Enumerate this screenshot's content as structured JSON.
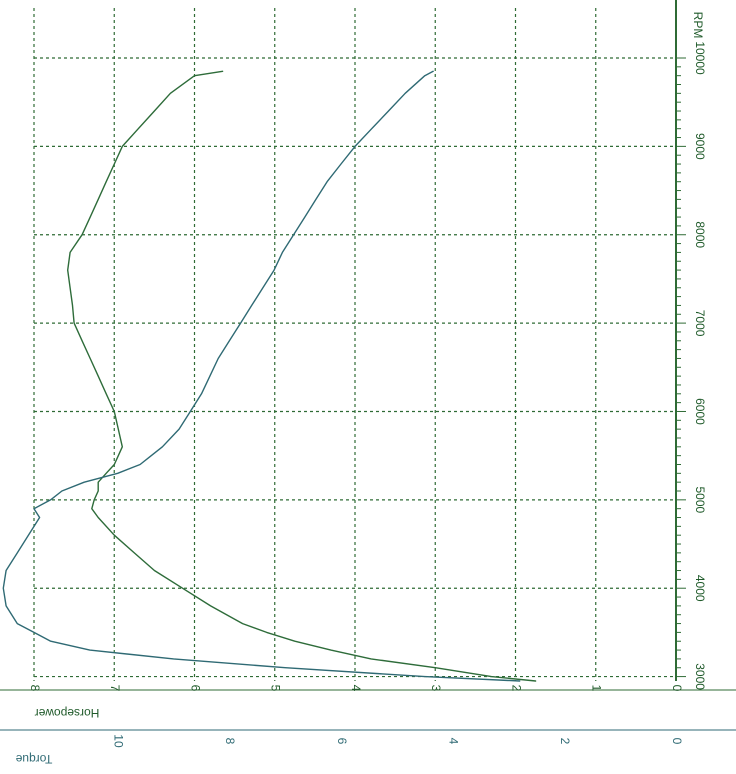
{
  "chart_data": {
    "type": "line",
    "orientation": "rotated-90-clockwise",
    "x_axis": {
      "label": "RPM",
      "ticks": [
        "3000",
        "4000",
        "5000",
        "6000",
        "7000",
        "8000",
        "9000",
        "10000"
      ],
      "range": [
        2950,
        10000
      ]
    },
    "horsepower_axis": {
      "label": "Horsepower",
      "ticks": [
        "0",
        "1",
        "2",
        "3",
        "4",
        "5",
        "6",
        "7",
        "8"
      ],
      "range": [
        0,
        8
      ]
    },
    "torque_axis": {
      "label": "Torque",
      "ticks": [
        "0",
        "2",
        "4",
        "6",
        "8",
        "10"
      ],
      "range": [
        0,
        11.5
      ]
    },
    "grid": true,
    "series": [
      {
        "color": "#2e6c3a",
        "axis": "horsepower",
        "points": [
          [
            2950,
            1.75
          ],
          [
            3000,
            2.3
          ],
          [
            3100,
            3.0
          ],
          [
            3200,
            3.8
          ],
          [
            3300,
            4.3
          ],
          [
            3400,
            4.75
          ],
          [
            3500,
            5.1
          ],
          [
            3600,
            5.4
          ],
          [
            3800,
            5.8
          ],
          [
            4000,
            6.15
          ],
          [
            4200,
            6.5
          ],
          [
            4400,
            6.75
          ],
          [
            4600,
            7.0
          ],
          [
            4800,
            7.2
          ],
          [
            4900,
            7.28
          ],
          [
            5000,
            7.25
          ],
          [
            5100,
            7.2
          ],
          [
            5200,
            7.2
          ],
          [
            5300,
            7.1
          ],
          [
            5400,
            7.0
          ],
          [
            5500,
            6.95
          ],
          [
            5600,
            6.9
          ],
          [
            5800,
            6.95
          ],
          [
            6000,
            7.0
          ],
          [
            6200,
            7.1
          ],
          [
            6400,
            7.2
          ],
          [
            6600,
            7.3
          ],
          [
            6800,
            7.4
          ],
          [
            7000,
            7.5
          ],
          [
            7200,
            7.52
          ],
          [
            7400,
            7.55
          ],
          [
            7600,
            7.58
          ],
          [
            7800,
            7.55
          ],
          [
            8000,
            7.4
          ],
          [
            8200,
            7.3
          ],
          [
            8400,
            7.2
          ],
          [
            8600,
            7.1
          ],
          [
            8800,
            7.0
          ],
          [
            9000,
            6.9
          ],
          [
            9200,
            6.7
          ],
          [
            9400,
            6.5
          ],
          [
            9600,
            6.3
          ],
          [
            9800,
            6.0
          ],
          [
            9850,
            5.65
          ]
        ]
      },
      {
        "color": "#2f6a74",
        "axis": "torque",
        "points": [
          [
            2950,
            2.8
          ],
          [
            3000,
            4.5
          ],
          [
            3100,
            7.0
          ],
          [
            3200,
            9.0
          ],
          [
            3300,
            10.5
          ],
          [
            3400,
            11.2
          ],
          [
            3500,
            11.5
          ],
          [
            3600,
            11.8
          ],
          [
            3800,
            12.0
          ],
          [
            4000,
            12.05
          ],
          [
            4200,
            12.0
          ],
          [
            4400,
            11.8
          ],
          [
            4600,
            11.6
          ],
          [
            4800,
            11.4
          ],
          [
            4900,
            11.5
          ],
          [
            5000,
            11.2
          ],
          [
            5100,
            11.0
          ],
          [
            5200,
            10.6
          ],
          [
            5300,
            10.0
          ],
          [
            5400,
            9.6
          ],
          [
            5500,
            9.4
          ],
          [
            5600,
            9.2
          ],
          [
            5800,
            8.9
          ],
          [
            6000,
            8.7
          ],
          [
            6200,
            8.5
          ],
          [
            6400,
            8.35
          ],
          [
            6600,
            8.2
          ],
          [
            6800,
            8.0
          ],
          [
            7000,
            7.8
          ],
          [
            7200,
            7.6
          ],
          [
            7400,
            7.4
          ],
          [
            7600,
            7.2
          ],
          [
            7800,
            7.05
          ],
          [
            8000,
            6.85
          ],
          [
            8200,
            6.65
          ],
          [
            8400,
            6.45
          ],
          [
            8600,
            6.25
          ],
          [
            8800,
            6.0
          ],
          [
            9000,
            5.75
          ],
          [
            9200,
            5.45
          ],
          [
            9400,
            5.15
          ],
          [
            9600,
            4.85
          ],
          [
            9800,
            4.5
          ],
          [
            9850,
            4.35
          ]
        ]
      }
    ]
  }
}
